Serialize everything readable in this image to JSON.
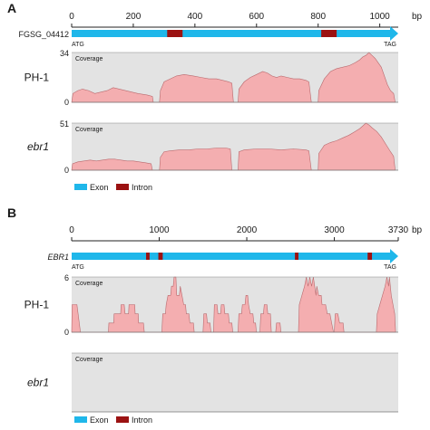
{
  "panels": [
    {
      "letter": "A",
      "unit": "bp",
      "axis_max": 1060,
      "ticks": [
        {
          "value": 0,
          "label": "0"
        },
        {
          "value": 200,
          "label": "200"
        },
        {
          "value": 400,
          "label": "400"
        },
        {
          "value": 600,
          "label": "600"
        },
        {
          "value": 800,
          "label": "800"
        },
        {
          "value": 1000,
          "label": "1000"
        }
      ],
      "gene": {
        "name": "FGSG_04412",
        "italic": false,
        "start_label": "ATG",
        "end_label": "TAG"
      },
      "exon_color": "#1fb7ea",
      "intron_color": "#9b1212",
      "introns": [
        [
          310,
          360
        ],
        [
          810,
          860
        ]
      ],
      "tracks": [
        {
          "sample": "PH-1",
          "italic": false,
          "coverage_label": "Coverage",
          "y_top_label": "34",
          "y_bottom_label": "0",
          "y_max": 34,
          "profile": [
            [
              0,
              0
            ],
            [
              4,
              6
            ],
            [
              20,
              8
            ],
            [
              35,
              9
            ],
            [
              55,
              8
            ],
            [
              75,
              6
            ],
            [
              95,
              7
            ],
            [
              115,
              8
            ],
            [
              135,
              10
            ],
            [
              155,
              9
            ],
            [
              175,
              8
            ],
            [
              195,
              7
            ],
            [
              215,
              6
            ],
            [
              245,
              5
            ],
            [
              262,
              4
            ],
            [
              265,
              0
            ],
            [
              285,
              0
            ],
            [
              288,
              8
            ],
            [
              300,
              14
            ],
            [
              320,
              16
            ],
            [
              340,
              18
            ],
            [
              365,
              19
            ],
            [
              395,
              18
            ],
            [
              420,
              17
            ],
            [
              445,
              16
            ],
            [
              470,
              16
            ],
            [
              490,
              15
            ],
            [
              510,
              14
            ],
            [
              520,
              13
            ],
            [
              525,
              0
            ],
            [
              540,
              0
            ],
            [
              543,
              9
            ],
            [
              560,
              14
            ],
            [
              580,
              17
            ],
            [
              600,
              19
            ],
            [
              620,
              21
            ],
            [
              635,
              20
            ],
            [
              650,
              18
            ],
            [
              665,
              17
            ],
            [
              680,
              18
            ],
            [
              700,
              17
            ],
            [
              720,
              16
            ],
            [
              740,
              16
            ],
            [
              760,
              15
            ],
            [
              770,
              14
            ],
            [
              778,
              0
            ],
            [
              800,
              0
            ],
            [
              802,
              8
            ],
            [
              820,
              16
            ],
            [
              840,
              21
            ],
            [
              860,
              23
            ],
            [
              880,
              24
            ],
            [
              900,
              25
            ],
            [
              920,
              27
            ],
            [
              935,
              29
            ],
            [
              945,
              31
            ],
            [
              955,
              32
            ],
            [
              965,
              34
            ],
            [
              975,
              32
            ],
            [
              985,
              30
            ],
            [
              995,
              27
            ],
            [
              1005,
              24
            ],
            [
              1015,
              18
            ],
            [
              1025,
              12
            ],
            [
              1035,
              8
            ],
            [
              1045,
              6
            ],
            [
              1050,
              0
            ]
          ]
        },
        {
          "sample": "ebr1",
          "italic": true,
          "coverage_label": "Coverage",
          "y_top_label": "51",
          "y_bottom_label": "0",
          "y_max": 51,
          "profile": [
            [
              0,
              0
            ],
            [
              3,
              7
            ],
            [
              20,
              9
            ],
            [
              40,
              10
            ],
            [
              60,
              11
            ],
            [
              80,
              10
            ],
            [
              100,
              11
            ],
            [
              120,
              12
            ],
            [
              140,
              12
            ],
            [
              160,
              11
            ],
            [
              180,
              10
            ],
            [
              200,
              10
            ],
            [
              220,
              9
            ],
            [
              240,
              8
            ],
            [
              258,
              7
            ],
            [
              262,
              0
            ],
            [
              285,
              0
            ],
            [
              288,
              14
            ],
            [
              300,
              20
            ],
            [
              320,
              21
            ],
            [
              350,
              22
            ],
            [
              380,
              22
            ],
            [
              410,
              23
            ],
            [
              440,
              23
            ],
            [
              470,
              24
            ],
            [
              500,
              24
            ],
            [
              515,
              23
            ],
            [
              520,
              0
            ],
            [
              540,
              0
            ],
            [
              543,
              20
            ],
            [
              560,
              22
            ],
            [
              600,
              23
            ],
            [
              640,
              23
            ],
            [
              680,
              22
            ],
            [
              720,
              23
            ],
            [
              760,
              22
            ],
            [
              770,
              21
            ],
            [
              778,
              0
            ],
            [
              800,
              0
            ],
            [
              802,
              18
            ],
            [
              820,
              27
            ],
            [
              840,
              30
            ],
            [
              860,
              32
            ],
            [
              880,
              35
            ],
            [
              900,
              38
            ],
            [
              920,
              42
            ],
            [
              935,
              45
            ],
            [
              945,
              48
            ],
            [
              955,
              51
            ],
            [
              965,
              49
            ],
            [
              975,
              46
            ],
            [
              990,
              42
            ],
            [
              1005,
              36
            ],
            [
              1020,
              28
            ],
            [
              1035,
              20
            ],
            [
              1045,
              15
            ],
            [
              1050,
              0
            ]
          ]
        }
      ],
      "legend": {
        "exon": "Exon",
        "intron": "Intron"
      }
    },
    {
      "letter": "B",
      "unit": "bp",
      "axis_max": 3730,
      "ticks": [
        {
          "value": 0,
          "label": "0"
        },
        {
          "value": 1000,
          "label": "1000"
        },
        {
          "value": 2000,
          "label": "2000"
        },
        {
          "value": 3000,
          "label": "3000"
        },
        {
          "value": 3730,
          "label": "3730"
        }
      ],
      "gene": {
        "name": "EBR1",
        "italic": true,
        "start_label": "ATG",
        "end_label": "TAG"
      },
      "exon_color": "#1fb7ea",
      "intron_color": "#9b1212",
      "introns": [
        [
          850,
          890
        ],
        [
          990,
          1040
        ],
        [
          2550,
          2590
        ],
        [
          3380,
          3430
        ]
      ],
      "tracks": [
        {
          "sample": "PH-1",
          "italic": false,
          "coverage_label": "Coverage",
          "y_top_label": "6",
          "y_bottom_label": "0",
          "y_max": 6,
          "profile": [
            [
              0,
              0
            ],
            [
              5,
              3
            ],
            [
              60,
              3
            ],
            [
              100,
              0
            ],
            [
              420,
              0
            ],
            [
              425,
              1
            ],
            [
              480,
              1
            ],
            [
              485,
              2
            ],
            [
              560,
              2
            ],
            [
              565,
              3
            ],
            [
              600,
              3
            ],
            [
              610,
              2
            ],
            [
              650,
              2
            ],
            [
              655,
              3
            ],
            [
              720,
              3
            ],
            [
              725,
              2
            ],
            [
              760,
              2
            ],
            [
              765,
              1
            ],
            [
              820,
              1
            ],
            [
              830,
              0
            ],
            [
              1030,
              0
            ],
            [
              1040,
              2
            ],
            [
              1070,
              2
            ],
            [
              1080,
              3
            ],
            [
              1100,
              4
            ],
            [
              1130,
              4
            ],
            [
              1140,
              5
            ],
            [
              1160,
              5
            ],
            [
              1170,
              6
            ],
            [
              1190,
              6
            ],
            [
              1200,
              4
            ],
            [
              1230,
              4
            ],
            [
              1240,
              5
            ],
            [
              1260,
              4
            ],
            [
              1280,
              3
            ],
            [
              1300,
              3
            ],
            [
              1310,
              2
            ],
            [
              1340,
              2
            ],
            [
              1350,
              1
            ],
            [
              1390,
              1
            ],
            [
              1400,
              0
            ],
            [
              1500,
              0
            ],
            [
              1510,
              2
            ],
            [
              1540,
              2
            ],
            [
              1550,
              1
            ],
            [
              1580,
              1
            ],
            [
              1590,
              0
            ],
            [
              1620,
              0
            ],
            [
              1630,
              3
            ],
            [
              1660,
              3
            ],
            [
              1670,
              2
            ],
            [
              1700,
              2
            ],
            [
              1710,
              3
            ],
            [
              1740,
              3
            ],
            [
              1750,
              2
            ],
            [
              1790,
              2
            ],
            [
              1800,
              1
            ],
            [
              1830,
              1
            ],
            [
              1840,
              0
            ],
            [
              1900,
              0
            ],
            [
              1910,
              2
            ],
            [
              1940,
              2
            ],
            [
              1950,
              3
            ],
            [
              1980,
              3
            ],
            [
              1990,
              4
            ],
            [
              2010,
              4
            ],
            [
              2020,
              3
            ],
            [
              2040,
              2
            ],
            [
              2070,
              2
            ],
            [
              2080,
              1
            ],
            [
              2100,
              1
            ],
            [
              2110,
              0
            ],
            [
              2150,
              0
            ],
            [
              2160,
              2
            ],
            [
              2190,
              2
            ],
            [
              2200,
              3
            ],
            [
              2230,
              3
            ],
            [
              2240,
              2
            ],
            [
              2270,
              2
            ],
            [
              2280,
              0
            ],
            [
              2330,
              0
            ],
            [
              2340,
              1
            ],
            [
              2380,
              1
            ],
            [
              2390,
              0
            ],
            [
              2590,
              0
            ],
            [
              2600,
              3
            ],
            [
              2630,
              4
            ],
            [
              2660,
              5
            ],
            [
              2680,
              6
            ],
            [
              2700,
              5
            ],
            [
              2720,
              6
            ],
            [
              2740,
              5
            ],
            [
              2760,
              6
            ],
            [
              2790,
              4
            ],
            [
              2800,
              5
            ],
            [
              2820,
              4
            ],
            [
              2850,
              4
            ],
            [
              2860,
              3
            ],
            [
              2900,
              3
            ],
            [
              2920,
              2
            ],
            [
              2950,
              2
            ],
            [
              2970,
              1
            ],
            [
              2990,
              0
            ],
            [
              3000,
              0
            ],
            [
              3010,
              2
            ],
            [
              3040,
              2
            ],
            [
              3060,
              1
            ],
            [
              3100,
              1
            ],
            [
              3110,
              0
            ],
            [
              3480,
              0
            ],
            [
              3490,
              2
            ],
            [
              3520,
              3
            ],
            [
              3550,
              4
            ],
            [
              3580,
              5
            ],
            [
              3600,
              6
            ],
            [
              3620,
              5
            ],
            [
              3630,
              6
            ],
            [
              3650,
              4
            ],
            [
              3670,
              3
            ],
            [
              3690,
              2
            ],
            [
              3700,
              0
            ]
          ]
        },
        {
          "sample": "ebr1",
          "italic": true,
          "coverage_label": "Coverage",
          "y_top_label": "",
          "y_bottom_label": "",
          "y_max": 6,
          "profile": []
        }
      ],
      "legend": {
        "exon": "Exon",
        "intron": "Intron"
      }
    }
  ]
}
